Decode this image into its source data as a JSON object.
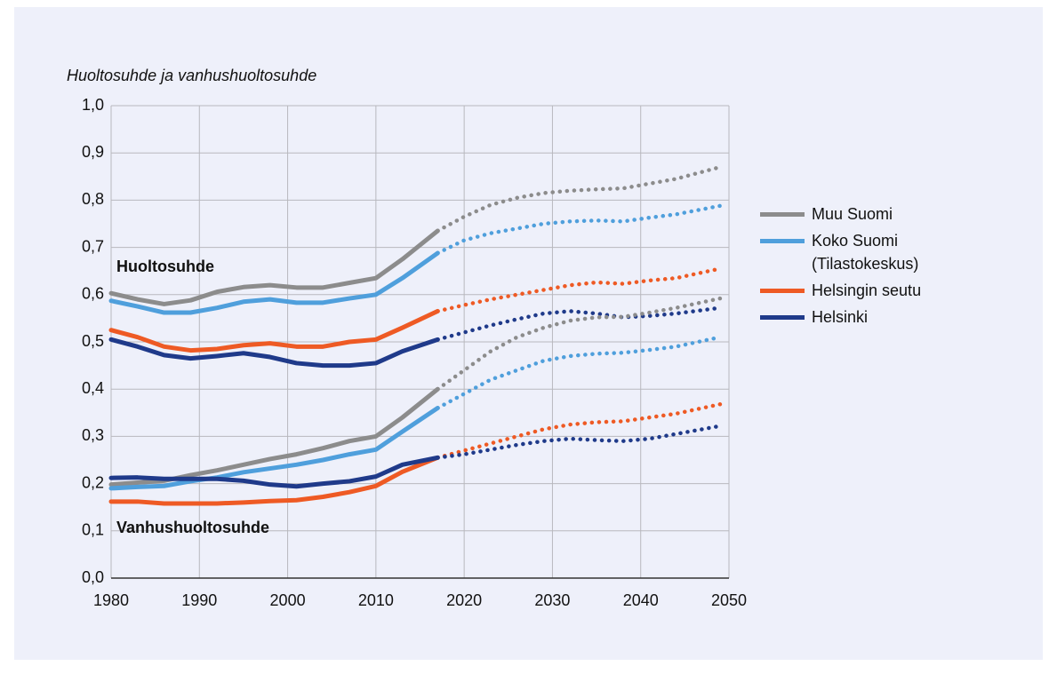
{
  "chart_data": {
    "type": "line",
    "title": "Huoltosuhde ja vanhushuoltosuhde",
    "annotations": [
      "Huoltosuhde",
      "Vanhushuoltosuhde"
    ],
    "projection_from": 2017,
    "x": [
      1980,
      1983,
      1986,
      1989,
      1992,
      1995,
      1998,
      2001,
      2004,
      2007,
      2010,
      2013,
      2017,
      2020,
      2023,
      2026,
      2029,
      2032,
      2035,
      2038,
      2041,
      2044,
      2049
    ],
    "series": [
      {
        "name": "Muu Suomi",
        "color": "#8c8c8c",
        "values": [
          0.603,
          0.59,
          0.58,
          0.588,
          0.606,
          0.616,
          0.62,
          0.615,
          0.615,
          0.625,
          0.635,
          0.675,
          0.735,
          0.765,
          0.79,
          0.805,
          0.815,
          0.82,
          0.823,
          0.825,
          0.835,
          0.845,
          0.87
        ]
      },
      {
        "name": "Koko Suomi (Tilastokeskus)",
        "color": "#4f9fdc",
        "values": [
          0.587,
          0.575,
          0.562,
          0.562,
          0.572,
          0.585,
          0.59,
          0.583,
          0.583,
          0.592,
          0.6,
          0.635,
          0.688,
          0.715,
          0.73,
          0.74,
          0.75,
          0.755,
          0.757,
          0.755,
          0.763,
          0.77,
          0.788
        ]
      },
      {
        "name": "Helsingin seutu",
        "color": "#ee5a24",
        "values": [
          0.525,
          0.51,
          0.49,
          0.482,
          0.485,
          0.493,
          0.497,
          0.49,
          0.49,
          0.5,
          0.505,
          0.53,
          0.565,
          0.578,
          0.59,
          0.6,
          0.61,
          0.62,
          0.626,
          0.623,
          0.63,
          0.635,
          0.655
        ]
      },
      {
        "name": "Helsinki",
        "color": "#1f3a8a",
        "values": [
          0.505,
          0.49,
          0.472,
          0.465,
          0.47,
          0.476,
          0.468,
          0.455,
          0.45,
          0.45,
          0.455,
          0.48,
          0.505,
          0.52,
          0.535,
          0.548,
          0.56,
          0.565,
          0.56,
          0.552,
          0.555,
          0.56,
          0.572
        ]
      },
      {
        "name": "Muu Suomi",
        "color": "#8c8c8c",
        "values": [
          0.198,
          0.202,
          0.206,
          0.218,
          0.228,
          0.24,
          0.252,
          0.262,
          0.275,
          0.29,
          0.3,
          0.34,
          0.4,
          0.44,
          0.48,
          0.51,
          0.53,
          0.545,
          0.552,
          0.553,
          0.562,
          0.572,
          0.592
        ]
      },
      {
        "name": "Koko Suomi (Tilastokeskus)",
        "color": "#4f9fdc",
        "values": [
          0.19,
          0.193,
          0.195,
          0.205,
          0.213,
          0.224,
          0.232,
          0.24,
          0.25,
          0.262,
          0.272,
          0.31,
          0.36,
          0.39,
          0.42,
          0.44,
          0.46,
          0.47,
          0.475,
          0.477,
          0.483,
          0.49,
          0.51
        ]
      },
      {
        "name": "Helsingin seutu",
        "color": "#ee5a24",
        "values": [
          0.162,
          0.162,
          0.158,
          0.158,
          0.158,
          0.16,
          0.163,
          0.165,
          0.172,
          0.182,
          0.195,
          0.225,
          0.255,
          0.27,
          0.285,
          0.3,
          0.315,
          0.325,
          0.33,
          0.332,
          0.34,
          0.348,
          0.368
        ]
      },
      {
        "name": "Helsinki",
        "color": "#1f3a8a",
        "values": [
          0.212,
          0.213,
          0.21,
          0.21,
          0.21,
          0.206,
          0.198,
          0.194,
          0.2,
          0.205,
          0.215,
          0.24,
          0.255,
          0.262,
          0.272,
          0.282,
          0.29,
          0.295,
          0.292,
          0.29,
          0.295,
          0.305,
          0.322
        ]
      }
    ],
    "legend_count": 4,
    "xlim": [
      1980,
      2050
    ],
    "xticks": [
      1980,
      1990,
      2000,
      2010,
      2020,
      2030,
      2040,
      2050
    ],
    "ylim": [
      0,
      1
    ],
    "yticks": [
      {
        "value": 0,
        "label": "0,0"
      },
      {
        "value": 0.1,
        "label": "0,1"
      },
      {
        "value": 0.2,
        "label": "0,2"
      },
      {
        "value": 0.3,
        "label": "0,3"
      },
      {
        "value": 0.4,
        "label": "0,4"
      },
      {
        "value": 0.5,
        "label": "0,5"
      },
      {
        "value": 0.6,
        "label": "0,6"
      },
      {
        "value": 0.7,
        "label": "0,7"
      },
      {
        "value": 0.8,
        "label": "0,8"
      },
      {
        "value": 0.9,
        "label": "0,9"
      },
      {
        "value": 1,
        "label": "1,0"
      }
    ],
    "grid": true
  }
}
